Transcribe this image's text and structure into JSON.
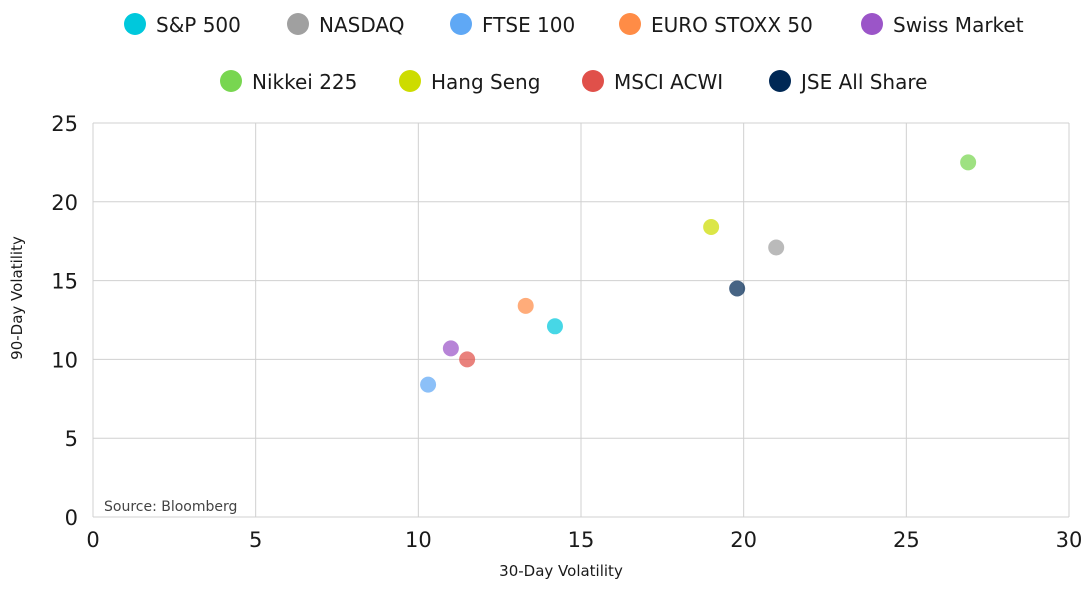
{
  "chart_data": {
    "type": "scatter",
    "xlabel": "30-Day Volatility",
    "ylabel": "90-Day Volatility",
    "xlim": [
      0,
      30
    ],
    "ylim": [
      0,
      25
    ],
    "xticks": [
      0,
      5,
      10,
      15,
      20,
      25,
      30
    ],
    "yticks": [
      0,
      5,
      10,
      15,
      20,
      25
    ],
    "grid": true,
    "legend_placement": "top",
    "annotation": "Source: Bloomberg",
    "series": [
      {
        "name": "S&P 500",
        "color": "#00c8dc",
        "x": 14.2,
        "y": 12.1
      },
      {
        "name": "NASDAQ",
        "color": "#a0a0a0",
        "x": 21.0,
        "y": 17.1
      },
      {
        "name": "FTSE 100",
        "color": "#5fa8f5",
        "x": 10.3,
        "y": 8.4
      },
      {
        "name": "EURO STOXX 50",
        "color": "#ff8c46",
        "x": 13.3,
        "y": 13.4
      },
      {
        "name": "Swiss Market",
        "color": "#9b55c8",
        "x": 11.0,
        "y": 10.7
      },
      {
        "name": "Nikkei 225",
        "color": "#78d650",
        "x": 26.9,
        "y": 22.5
      },
      {
        "name": "Hang Seng",
        "color": "#cddc00",
        "x": 19.0,
        "y": 18.4
      },
      {
        "name": "MSCI ACWI",
        "color": "#e0504a",
        "x": 11.5,
        "y": 10.0
      },
      {
        "name": "JSE All Share",
        "color": "#002855",
        "x": 19.8,
        "y": 14.5
      }
    ]
  }
}
